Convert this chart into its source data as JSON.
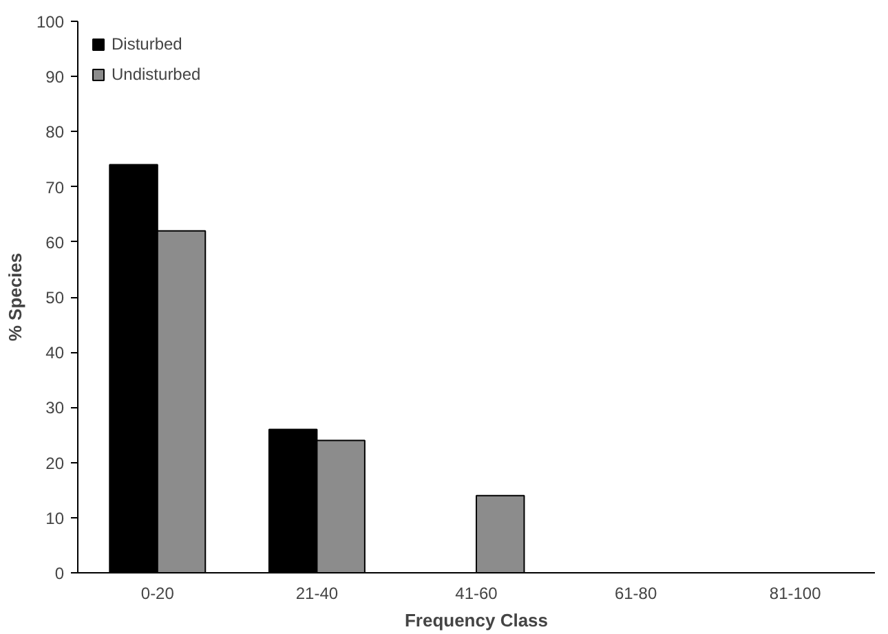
{
  "chart_data": {
    "type": "bar",
    "xlabel": "Frequency Class",
    "ylabel": "% Species",
    "categories": [
      "0-20",
      "21-40",
      "41-60",
      "61-80",
      "81-100"
    ],
    "series": [
      {
        "name": "Disturbed",
        "color": "#000000",
        "values": [
          74,
          26,
          0,
          0,
          0
        ]
      },
      {
        "name": "Undisturbed",
        "color": "#8c8c8c",
        "values": [
          62,
          24,
          14,
          0,
          0
        ]
      }
    ],
    "ylim": [
      0,
      100
    ],
    "yticks": [
      0,
      10,
      20,
      30,
      40,
      50,
      60,
      70,
      80,
      90,
      100
    ],
    "grid": false,
    "legend": "top left"
  }
}
